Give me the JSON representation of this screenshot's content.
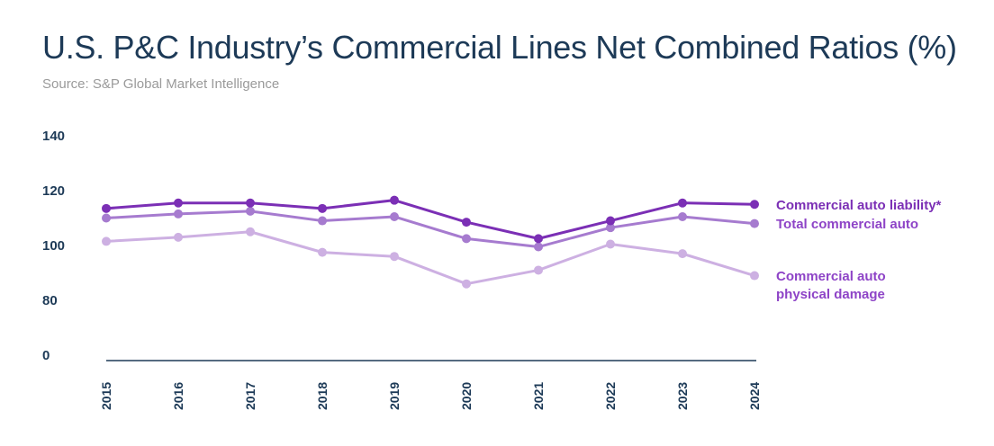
{
  "header": {
    "title": "U.S. P&C Industry’s Commercial Lines Net Combined Ratios (%)",
    "source": "Source: S&P Global Market Intelligence"
  },
  "chart_data": {
    "type": "line",
    "title": "U.S. P&C Industry’s Commercial Lines Net Combined Ratios (%)",
    "subtitle": "Source: S&P Global Market Intelligence",
    "xlabel": "",
    "ylabel": "",
    "x": [
      "2015",
      "2016",
      "2017",
      "2018",
      "2019",
      "2020",
      "2021",
      "2022",
      "2023",
      "2024"
    ],
    "y_ticks": [
      "0",
      "80",
      "100",
      "120",
      "140"
    ],
    "axis_break": "0 to 80",
    "ylim": [
      0,
      140
    ],
    "grid": false,
    "legend": "direct labels at right end of lines",
    "series": [
      {
        "name": "Commercial auto liability*",
        "label_lines": [
          "Commercial auto liability*"
        ],
        "color": "#7b2fb5",
        "values": [
          113.5,
          115.5,
          115.5,
          113.5,
          116.5,
          108.5,
          102.5,
          109,
          115.5,
          115
        ]
      },
      {
        "name": "Total commercial auto",
        "label_lines": [
          "Total commercial auto"
        ],
        "color": "#a67bcf",
        "values": [
          110,
          111.5,
          112.5,
          109,
          110.5,
          102.5,
          99.5,
          106.5,
          110.5,
          108
        ]
      },
      {
        "name": "Commercial auto physical damage",
        "label_lines": [
          "Commercial auto",
          "physical damage"
        ],
        "color": "#cdb0e2",
        "values": [
          101.5,
          103,
          105,
          97.5,
          96,
          86,
          91,
          100.5,
          97,
          89
        ]
      }
    ]
  }
}
